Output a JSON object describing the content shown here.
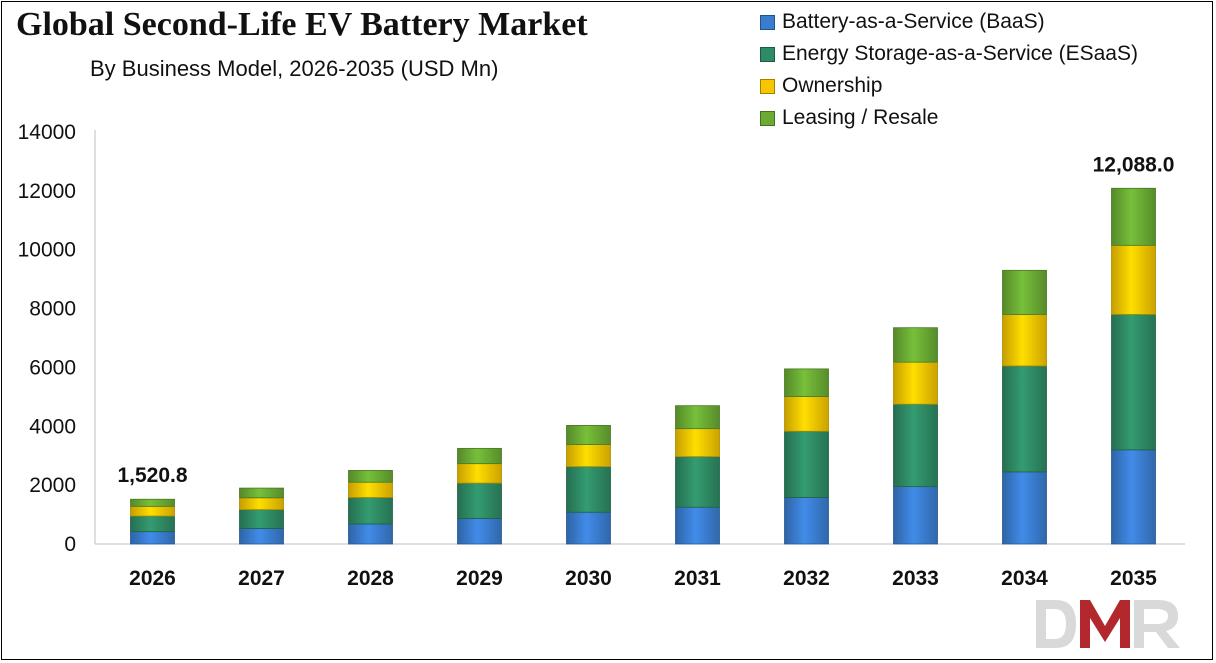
{
  "chart_data": {
    "type": "bar",
    "stacked": true,
    "title": "Global Second-Life EV Battery Market",
    "subtitle": "By Business Model, 2026-2035 (USD Mn)",
    "xlabel": "",
    "ylabel": "",
    "ylim": [
      0,
      14000
    ],
    "yticks": [
      0,
      2000,
      4000,
      6000,
      8000,
      10000,
      12000,
      14000
    ],
    "categories": [
      "2026",
      "2027",
      "2028",
      "2029",
      "2030",
      "2031",
      "2032",
      "2033",
      "2034",
      "2035"
    ],
    "series": [
      {
        "name": "Battery-as-a-Service (BaaS)",
        "color": "#3a7dd0",
        "values": [
          420,
          530,
          680,
          870,
          1080,
          1250,
          1580,
          1950,
          2450,
          3200
        ]
      },
      {
        "name": "Energy Storage-as-a-Service (ESaaS)",
        "color": "#2e8b64",
        "values": [
          530,
          640,
          900,
          1200,
          1550,
          1720,
          2250,
          2800,
          3600,
          4600
        ]
      },
      {
        "name": "Ownership",
        "color": "#f7c600",
        "values": [
          330,
          400,
          520,
          660,
          750,
          950,
          1180,
          1430,
          1750,
          2350
        ]
      },
      {
        "name": "Leasing / Resale",
        "color": "#6aab34",
        "values": [
          240.8,
          330,
          400,
          520,
          650,
          780,
          940,
          1170,
          1500,
          1938
        ]
      }
    ],
    "annotations": [
      {
        "category": "2026",
        "text": "1,520.8"
      },
      {
        "category": "2035",
        "text": "12,088.0"
      }
    ],
    "legend_position": "top-right",
    "grid": false
  },
  "logo": {
    "text": "DMR",
    "colors": [
      "#d9d9d9",
      "#b3282d"
    ]
  }
}
